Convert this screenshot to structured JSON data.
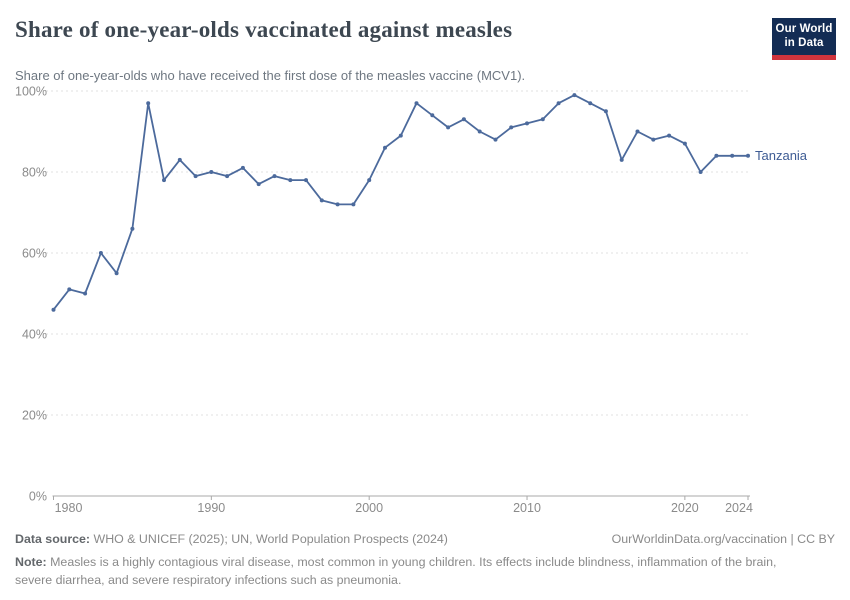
{
  "header": {
    "title": "Share of one-year-olds vaccinated against measles",
    "subtitle": "Share of one-year-olds who have received the first dose of the measles vaccine (MCV1).",
    "logo": {
      "line1": "Our World",
      "line2": "in Data"
    }
  },
  "chart_data": {
    "type": "line",
    "title": "Share of one-year-olds vaccinated against measles",
    "xlabel": "",
    "ylabel": "",
    "x_range": [
      1980,
      2024
    ],
    "ylim": [
      0,
      100
    ],
    "grid": "horizontal-dashed",
    "legend_position": "end-of-line-label",
    "xticks": [
      1980,
      1990,
      2000,
      2010,
      2020,
      2024
    ],
    "yticks": [
      0,
      20,
      40,
      60,
      80,
      100
    ],
    "ytick_suffix": "%",
    "x": [
      1980,
      1981,
      1982,
      1983,
      1984,
      1985,
      1986,
      1987,
      1988,
      1989,
      1990,
      1991,
      1992,
      1993,
      1994,
      1995,
      1996,
      1997,
      1998,
      1999,
      2000,
      2001,
      2002,
      2003,
      2004,
      2005,
      2006,
      2007,
      2008,
      2009,
      2010,
      2011,
      2012,
      2013,
      2014,
      2015,
      2016,
      2017,
      2018,
      2019,
      2020,
      2021,
      2022,
      2023,
      2024
    ],
    "series": [
      {
        "name": "Tanzania",
        "values": [
          46,
          51,
          50,
          60,
          55,
          66,
          97,
          78,
          83,
          79,
          80,
          79,
          81,
          77,
          79,
          78,
          78,
          73,
          72,
          72,
          78,
          86,
          89,
          97,
          94,
          91,
          93,
          90,
          88,
          91,
          92,
          93,
          97,
          99,
          97,
          95,
          83,
          90,
          88,
          89,
          87,
          80,
          84,
          84,
          84
        ]
      }
    ]
  },
  "colors": {
    "line": "#4C6A9C",
    "entity_label": "#3E5C94",
    "grid": "#e0e0e0",
    "axis": "#a9a9a9",
    "tick_text": "#8b8b8b",
    "logo_bg": "#132c54",
    "logo_bar": "#d0343d"
  },
  "footer": {
    "datasource_label": "Data source:",
    "datasource_text": " WHO & UNICEF (2025); UN, World Population Prospects (2024)",
    "link": "OurWorldinData.org/vaccination | CC BY",
    "note_label": "Note:",
    "note_text": " Measles is a highly contagious viral disease, most common in young children. Its effects include blindness, inflammation of the brain, severe diarrhea, and severe respiratory infections such as pneumonia."
  }
}
